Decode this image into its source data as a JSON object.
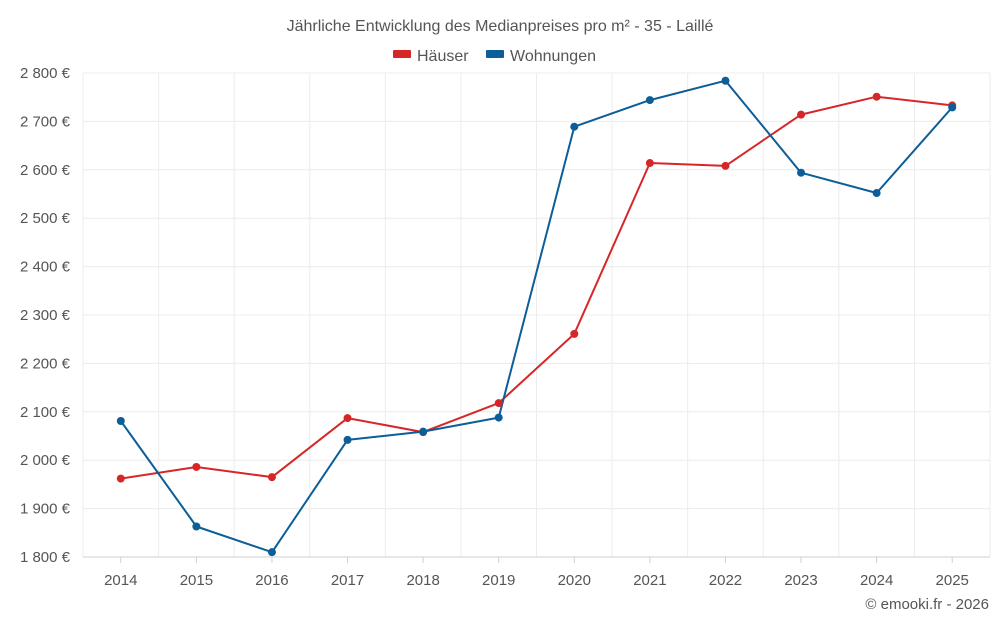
{
  "chart_data": {
    "type": "line",
    "title": "Jährliche Entwicklung des Medianpreises pro m² - 35 - Laillé",
    "xlabel": "",
    "ylabel": "",
    "categories": [
      "2014",
      "2015",
      "2016",
      "2017",
      "2018",
      "2019",
      "2020",
      "2021",
      "2022",
      "2023",
      "2024",
      "2025"
    ],
    "ylim": [
      1800,
      2800
    ],
    "yticks": [
      1800,
      1900,
      2000,
      2100,
      2200,
      2300,
      2400,
      2500,
      2600,
      2700,
      2800
    ],
    "ytick_labels": [
      "1 800 €",
      "1 900 €",
      "2 000 €",
      "2 100 €",
      "2 200 €",
      "2 300 €",
      "2 400 €",
      "2 500 €",
      "2 600 €",
      "2 700 €",
      "2 800 €"
    ],
    "grid": true,
    "legend_position": "top-center",
    "series": [
      {
        "name": "Häuser",
        "color": "#d62728",
        "values": [
          1962,
          1986,
          1965,
          2087,
          2058,
          2118,
          2261,
          2614,
          2608,
          2714,
          2751,
          2733
        ]
      },
      {
        "name": "Wohnungen",
        "color": "#0b5e97",
        "values": [
          2081,
          1863,
          1810,
          2042,
          2059,
          2088,
          2689,
          2744,
          2784,
          2594,
          2552,
          2729
        ]
      }
    ]
  },
  "credit": "© emooki.fr - 2026"
}
